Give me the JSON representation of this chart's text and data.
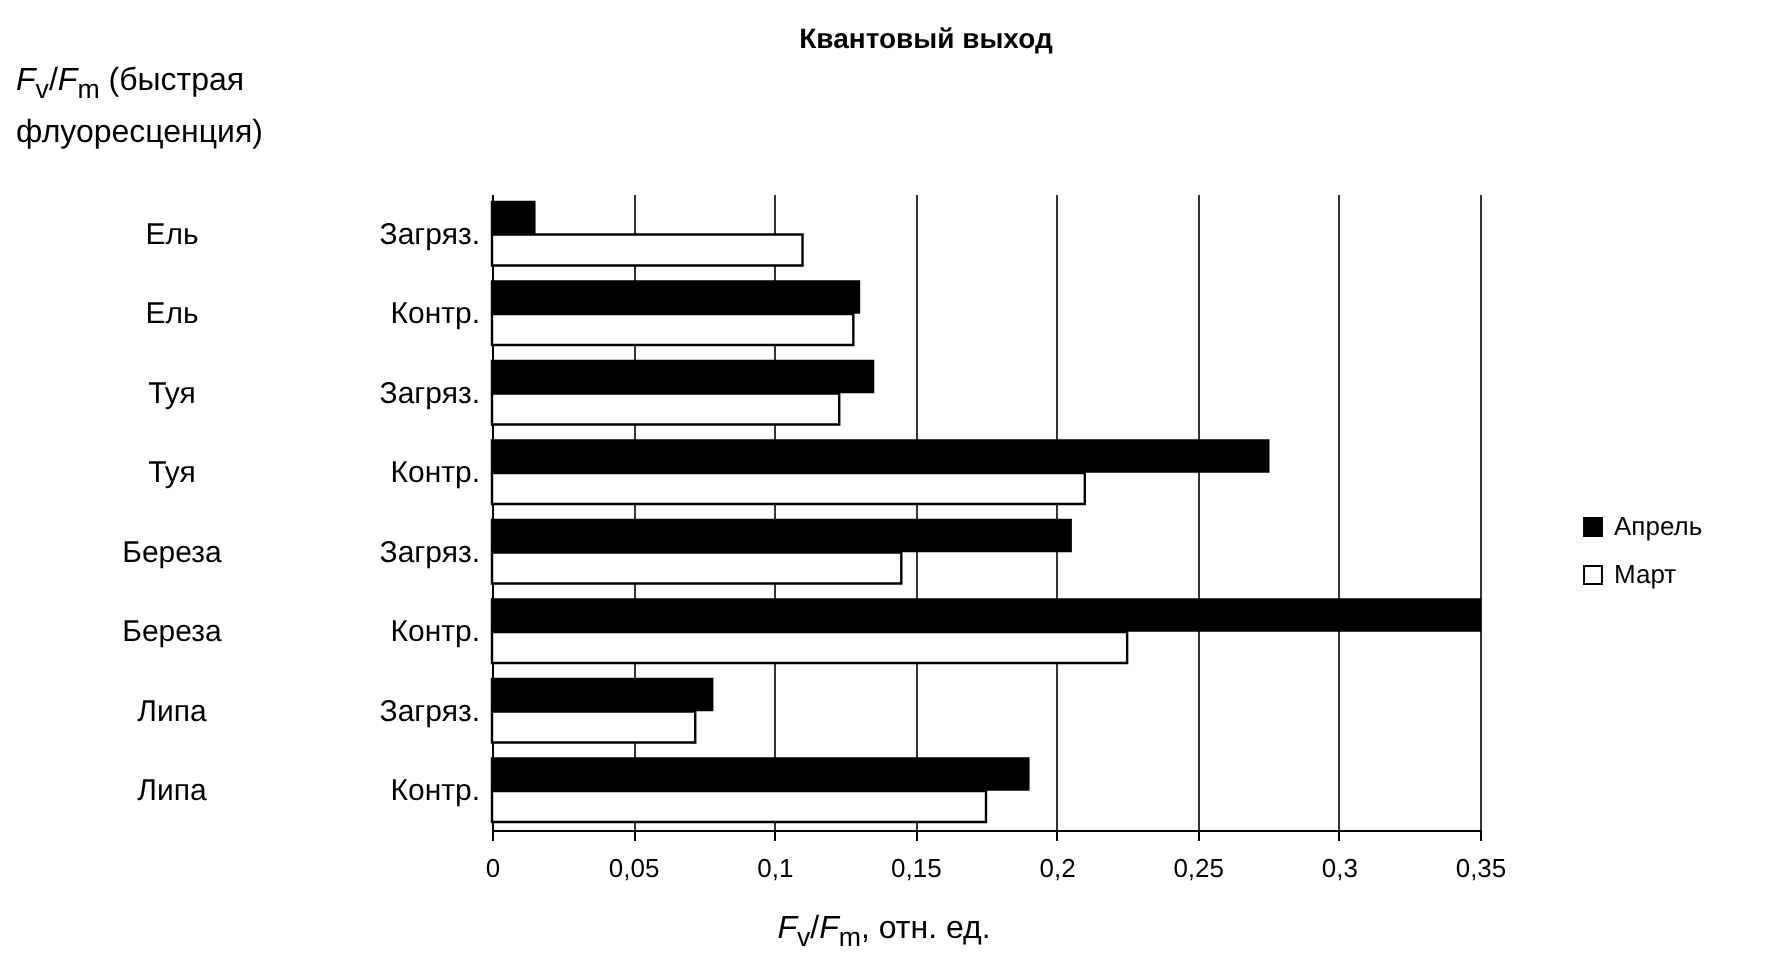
{
  "chart_data": {
    "type": "bar",
    "orientation": "horizontal",
    "title": "Квантовый выход",
    "annotations": [
      "F$_{v}$/F$_{m}$ (быстрая флуоресценция)"
    ],
    "xlabel": "F$_{v}$/F$_{m}$, отн. ед.",
    "categories": [
      "Ель Загряз.",
      "Ель Контр.",
      "Туя Загряз.",
      "Туя Контр.",
      "Береза Загряз.",
      "Береза Контр.",
      "Липа Загряз.",
      "Липа Контр."
    ],
    "series": [
      {
        "name": "Апрель",
        "color": "#000000",
        "values": [
          0.015,
          0.13,
          0.135,
          0.275,
          0.205,
          0.35,
          0.078,
          0.19
        ]
      },
      {
        "name": "Март",
        "color": "#ffffff",
        "values": [
          0.11,
          0.128,
          0.123,
          0.21,
          0.145,
          0.225,
          0.072,
          0.175
        ]
      }
    ],
    "xlim": [
      0,
      0.35
    ],
    "xticks": [
      0,
      {
        "value": 0.05,
        "label": "0,05"
      },
      {
        "value": 0.1,
        "label": "0,1"
      },
      {
        "value": 0.15,
        "label": "0,15"
      },
      {
        "value": 0.2,
        "label": "0,2"
      },
      {
        "value": 0.25,
        "label": "0,25"
      },
      {
        "value": 0.3,
        "label": "0,3"
      },
      {
        "value": 0.35,
        "label": "0,35"
      }
    ],
    "grid": "x",
    "legend": "right"
  }
}
